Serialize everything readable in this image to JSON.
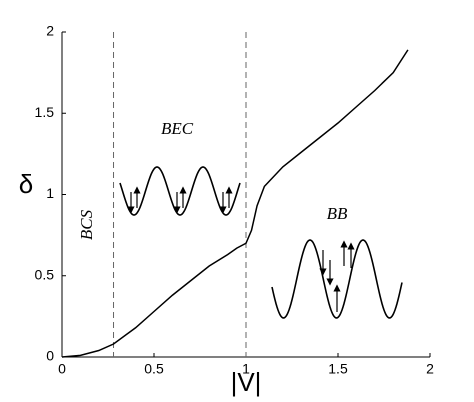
{
  "chart_data": {
    "type": "line",
    "xlabel": "|V|",
    "ylabel": "δ",
    "x": [
      0,
      0.1,
      0.2,
      0.28,
      0.4,
      0.5,
      0.6,
      0.7,
      0.8,
      0.9,
      0.95,
      1.0,
      1.03,
      1.06,
      1.1,
      1.2,
      1.3,
      1.4,
      1.5,
      1.6,
      1.7,
      1.8,
      1.88
    ],
    "series": [
      {
        "color": "#000000",
        "values": [
          0,
          0.01,
          0.04,
          0.08,
          0.18,
          0.28,
          0.38,
          0.47,
          0.56,
          0.63,
          0.67,
          0.7,
          0.78,
          0.93,
          1.05,
          1.17,
          1.26,
          1.35,
          1.44,
          1.54,
          1.64,
          1.75,
          1.89
        ]
      }
    ],
    "vlines": [
      0.28,
      1.0
    ],
    "annotations": [
      "BCS",
      "BEC",
      "BB"
    ],
    "xlim": [
      0,
      2
    ],
    "ylim": [
      0,
      2
    ],
    "xticks": [
      0,
      0.5,
      1,
      1.5,
      2
    ],
    "yticks": [
      0,
      0.5,
      1,
      1.5,
      2
    ]
  }
}
